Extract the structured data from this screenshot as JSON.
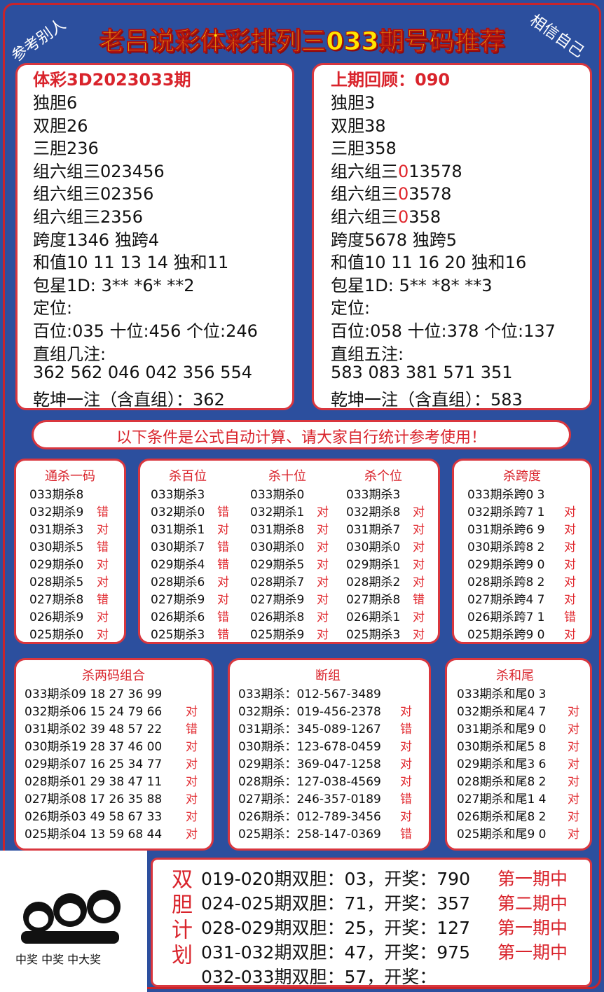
{
  "header": {
    "title": "老吕说彩体彩排列三033期号码推荐",
    "corner_left": "参考别人",
    "corner_right": "相信自己"
  },
  "current": {
    "title": "体彩3D2023033期",
    "lines": [
      "独胆6",
      "双胆26",
      "三胆236",
      "组六组三023456",
      "组六组三02356",
      "组六组三2356",
      "跨度1346 独跨4",
      "和值10 11 13 14 独和11",
      "包星1D: 3** *6* **2",
      "定位:",
      "百位:035 十位:456 个位:246",
      "直组几注:",
      "362 562 046 042 356 554",
      "乾坤一注（含直组）：362"
    ]
  },
  "review": {
    "title": "上期回顾：090",
    "lines": [
      "独胆3",
      "双胆38",
      "三胆358",
      [
        "组六组三",
        "0",
        "13578"
      ],
      [
        "组六组三",
        "0",
        "3578"
      ],
      [
        "组六组三",
        "0",
        "358"
      ],
      "跨度5678 独跨5",
      "和值10 11 16 20 独和16",
      "包星1D: 5** *8* **3",
      "定位:",
      "百位:058 十位:378 个位:137",
      "直组五注:",
      "583 083 381 571 351",
      "乾坤一注（含直组）：583"
    ]
  },
  "notice": "以下条件是公式自动计算、请大家自行统计参考使用！",
  "boxes": [
    {
      "columns": [
        {
          "title": "通杀一码",
          "rows": [
            [
              "033期杀8"
            ],
            [
              "032期杀9",
              "错"
            ],
            [
              "031期杀3",
              "对"
            ],
            [
              "030期杀5",
              "错"
            ],
            [
              "029期杀0",
              "对"
            ],
            [
              "028期杀5",
              "对"
            ],
            [
              "027期杀8",
              "错"
            ],
            [
              "026期杀9",
              "对"
            ],
            [
              "025期杀0",
              "对"
            ]
          ]
        }
      ]
    },
    {
      "columns": [
        {
          "title": "杀百位",
          "rows": [
            [
              "033期杀3"
            ],
            [
              "032期杀0",
              "错"
            ],
            [
              "031期杀1",
              "对"
            ],
            [
              "030期杀7",
              "错"
            ],
            [
              "029期杀4",
              "错"
            ],
            [
              "028期杀6",
              "对"
            ],
            [
              "027期杀9",
              "对"
            ],
            [
              "026期杀6",
              "错"
            ],
            [
              "025期杀3",
              "错"
            ]
          ]
        },
        {
          "title": "杀十位",
          "rows": [
            [
              "033期杀0"
            ],
            [
              "032期杀1",
              "对"
            ],
            [
              "031期杀8",
              "对"
            ],
            [
              "030期杀0",
              "对"
            ],
            [
              "029期杀5",
              "对"
            ],
            [
              "028期杀7",
              "对"
            ],
            [
              "027期杀9",
              "对"
            ],
            [
              "026期杀8",
              "对"
            ],
            [
              "025期杀9",
              "对"
            ]
          ]
        },
        {
          "title": "杀个位",
          "rows": [
            [
              "033期杀3"
            ],
            [
              "032期杀8",
              "对"
            ],
            [
              "031期杀7",
              "对"
            ],
            [
              "030期杀0",
              "对"
            ],
            [
              "029期杀1",
              "对"
            ],
            [
              "028期杀2",
              "对"
            ],
            [
              "027期杀8",
              "错"
            ],
            [
              "026期杀1",
              "对"
            ],
            [
              "025期杀3",
              "对"
            ]
          ]
        }
      ]
    },
    {
      "columns": [
        {
          "title": "杀跨度",
          "rows": [
            [
              "033期杀跨0 3"
            ],
            [
              "032期杀跨7 1",
              "对"
            ],
            [
              "031期杀跨6 9",
              "对"
            ],
            [
              "030期杀跨8 2",
              "对"
            ],
            [
              "029期杀跨9 0",
              "对"
            ],
            [
              "028期杀跨8 2",
              "对"
            ],
            [
              "027期杀跨4 7",
              "对"
            ],
            [
              "026期杀跨7 1",
              "错"
            ],
            [
              "025期杀跨9 0",
              "对"
            ]
          ]
        }
      ]
    },
    {
      "columns": [
        {
          "title": "杀两码组合",
          "rows": [
            [
              "033期杀09 18 27 36 99"
            ],
            [
              "032期杀06 15 24 79 66",
              "对"
            ],
            [
              "031期杀02 39 48 57 22",
              "错"
            ],
            [
              "030期杀19 28 37 46 00",
              "对"
            ],
            [
              "029期杀07 16 25 34 77",
              "对"
            ],
            [
              "028期杀01 29 38 47 11",
              "对"
            ],
            [
              "027期杀08 17 26 35 88",
              "对"
            ],
            [
              "026期杀03 49 58 67 33",
              "对"
            ],
            [
              "025期杀04 13 59 68 44",
              "对"
            ]
          ]
        }
      ]
    },
    {
      "columns": [
        {
          "title": "断组",
          "rows": [
            [
              "033期杀：012-567-3489"
            ],
            [
              "032期杀：019-456-2378",
              "对"
            ],
            [
              "031期杀：345-089-1267",
              "错"
            ],
            [
              "030期杀：123-678-0459",
              "对"
            ],
            [
              "029期杀：369-047-1258",
              "对"
            ],
            [
              "028期杀：127-038-4569",
              "对"
            ],
            [
              "027期杀：246-357-0189",
              "错"
            ],
            [
              "026期杀：012-789-3456",
              "对"
            ],
            [
              "025期杀：258-147-0369",
              "错"
            ]
          ]
        }
      ]
    },
    {
      "columns": [
        {
          "title": "杀和尾",
          "rows": [
            [
              "033期杀和尾0 3"
            ],
            [
              "032期杀和尾4 7",
              "对"
            ],
            [
              "031期杀和尾9 0",
              "对"
            ],
            [
              "030期杀和尾5 8",
              "对"
            ],
            [
              "029期杀和尾3 6",
              "对"
            ],
            [
              "028期杀和尾8 2",
              "对"
            ],
            [
              "027期杀和尾1 4",
              "对"
            ],
            [
              "026期杀和尾8 2",
              "对"
            ],
            [
              "025期杀和尾9 0",
              "对"
            ]
          ]
        }
      ]
    }
  ],
  "sticker": {
    "caption": "中奖 中奖 中大奖"
  },
  "plan": {
    "label": "双胆计划",
    "rows": [
      {
        "text": "019-020期双胆：03，开奖：",
        "draw": "790",
        "result": "第一期中"
      },
      {
        "text": "024-025期双胆：71，开奖：",
        "draw": "357",
        "result": "第二期中"
      },
      {
        "text": "028-029期双胆：25，开奖：",
        "draw": "127",
        "result": "第一期中"
      },
      {
        "text": "031-032期双胆：47，开奖：",
        "draw": "975",
        "result": "第一期中"
      },
      {
        "text": "032-033期双胆：57，开奖："
      }
    ]
  }
}
